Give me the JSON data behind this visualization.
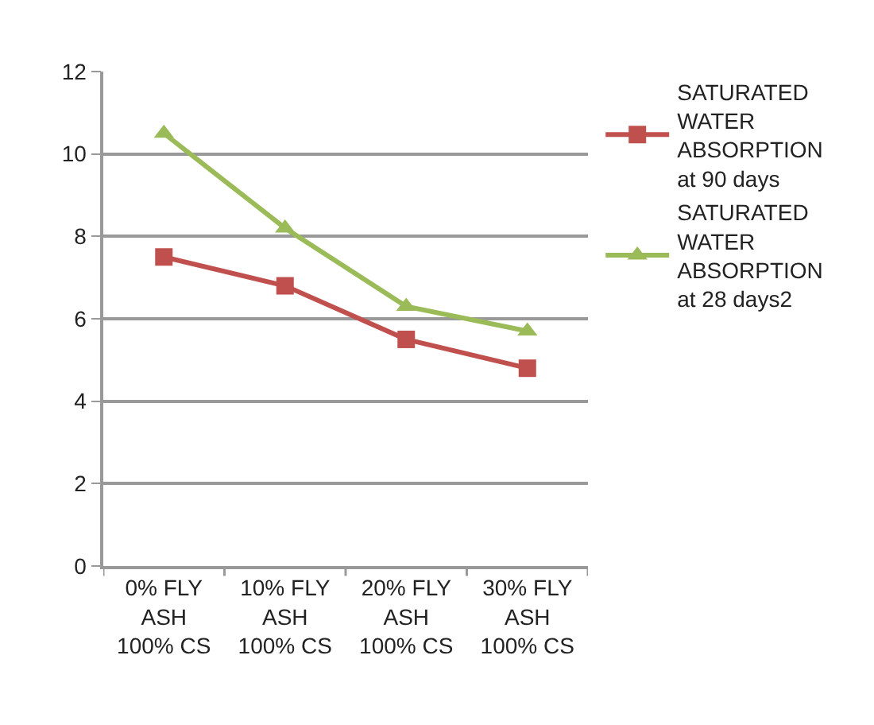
{
  "chart_data": {
    "type": "line",
    "categories": [
      "0% FLY ASH 100% CS",
      "10% FLY ASH 100% CS",
      "20% FLY ASH 100% CS",
      "30% FLY ASH 100% CS"
    ],
    "series": [
      {
        "name": "SATURATED WATER ABSORPTION at 90 days",
        "color": "#c0504d",
        "marker": "square",
        "values": [
          7.5,
          6.8,
          5.5,
          4.8
        ]
      },
      {
        "name": "SATURATED WATER ABSORPTION at 28 days2",
        "color": "#9bbb59",
        "marker": "triangle",
        "values": [
          10.5,
          8.2,
          6.3,
          5.7
        ]
      }
    ],
    "ylim": [
      0,
      12
    ],
    "yticks": [
      0,
      2,
      4,
      6,
      8,
      10,
      12
    ],
    "grid": "y",
    "legend": "right",
    "line_style": "solid"
  }
}
